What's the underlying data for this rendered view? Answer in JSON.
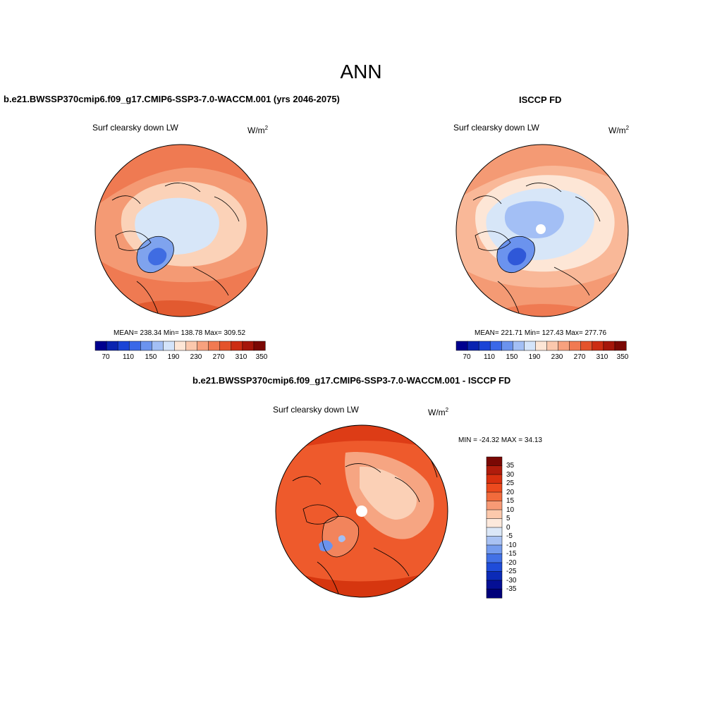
{
  "title": "ANN",
  "panels": {
    "left": {
      "title": "b.e21.BWSSP370cmip6.f09_g17.CMIP6-SSP3-7.0-WACCM.001 (yrs 2046-2075)",
      "variable": "Surf clearsky down LW",
      "units": "W/m",
      "units_sup": "2",
      "stats": "MEAN= 238.34  Min= 138.78  Max= 309.52"
    },
    "right": {
      "title": "ISCCP FD",
      "variable": "Surf clearsky down LW",
      "units": "W/m",
      "units_sup": "2",
      "stats": "MEAN= 221.71  Min= 127.43  Max= 277.76"
    },
    "diff": {
      "title": "b.e21.BWSSP370cmip6.f09_g17.CMIP6-SSP3-7.0-WACCM.001 - ISCCP FD",
      "variable": "Surf clearsky down LW",
      "units": "W/m",
      "units_sup": "2",
      "stats": "MIN = -24.32 MAX =  34.13"
    }
  },
  "colorbar_h": {
    "ticks": [
      "70",
      "110",
      "150",
      "190",
      "230",
      "270",
      "310",
      "350"
    ],
    "colors": [
      "#00008f",
      "#0a24b0",
      "#1a44d6",
      "#3a68e8",
      "#6b93ee",
      "#a3bff5",
      "#d4e4fa",
      "#fde6d6",
      "#fbc8ad",
      "#f7a17e",
      "#f17a52",
      "#e4532b",
      "#cc2d12",
      "#a5160a",
      "#7a0804"
    ]
  },
  "colorbar_v": {
    "labels": [
      "35",
      "30",
      "25",
      "20",
      "15",
      "10",
      "5",
      "0",
      "-5",
      "-10",
      "-15",
      "-20",
      "-25",
      "-30",
      "-35"
    ],
    "colors": [
      "#7a0804",
      "#b01c0c",
      "#d8300f",
      "#ec4a1e",
      "#f26b3c",
      "#f79a75",
      "#fcc9ac",
      "#fde9dc",
      "#dbe7f7",
      "#a9c2f3",
      "#759cee",
      "#4271e6",
      "#1f4cd9",
      "#0b2ab7",
      "#050f95",
      "#00007a"
    ]
  },
  "colors": {
    "land_outline": "#000000",
    "map_warm_base": "#f47d53",
    "map_cool_base": "#d7e6f8"
  }
}
